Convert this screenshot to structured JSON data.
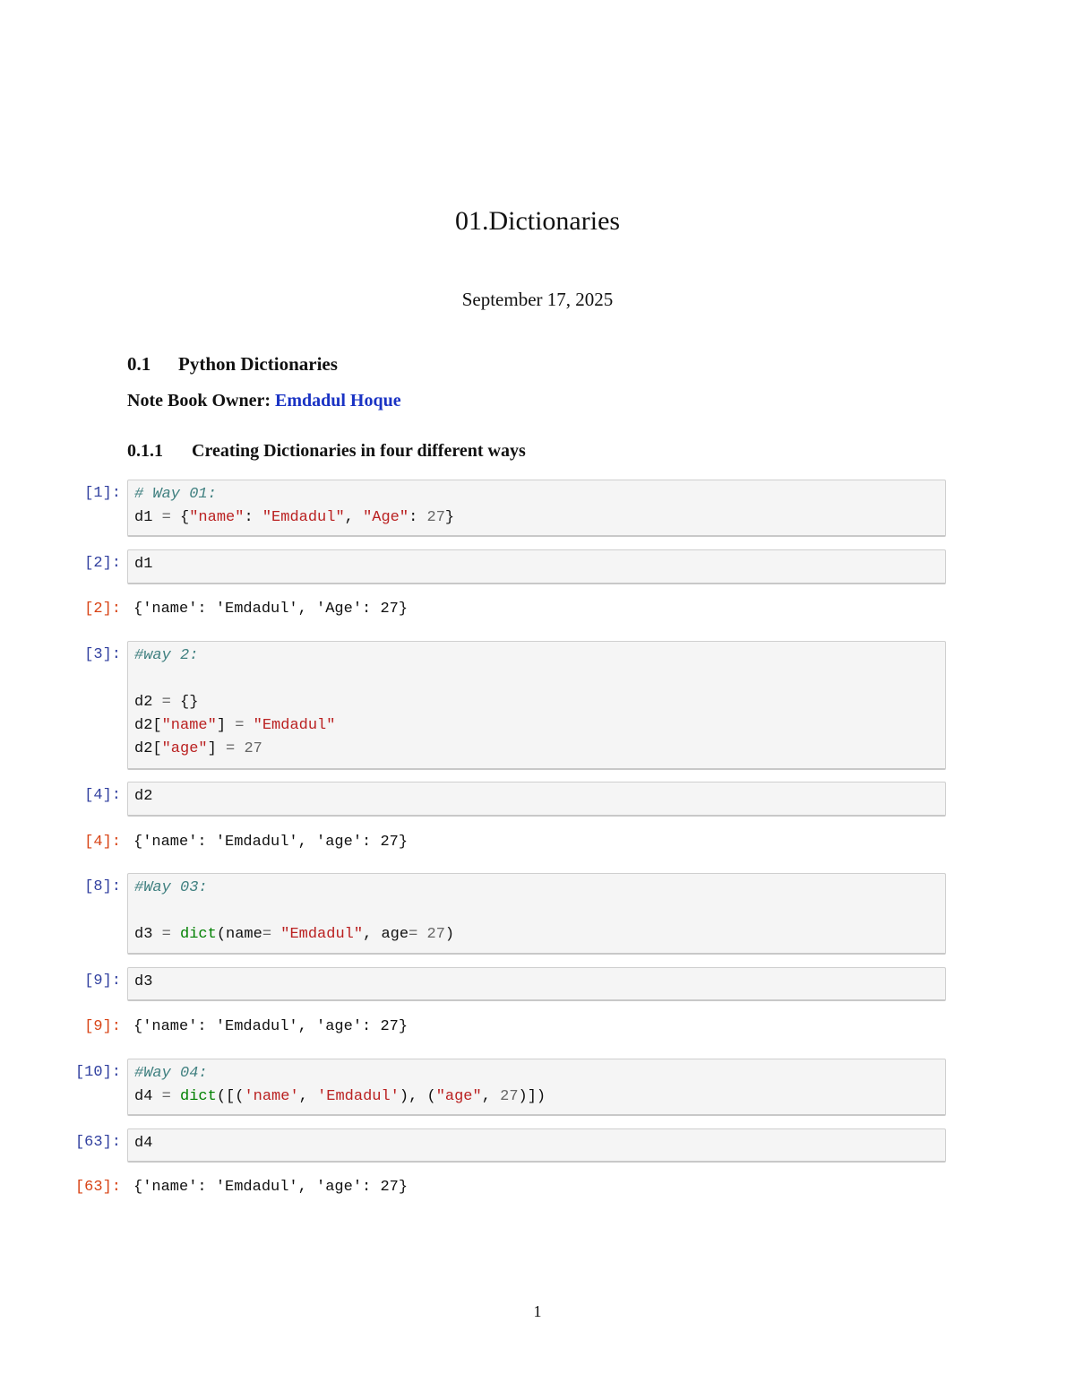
{
  "doc": {
    "title": "01.Dictionaries",
    "date": "September 17, 2025",
    "section_num": "0.1",
    "section_title": "Python Dictionaries",
    "owner_label": "Note Book Owner:",
    "owner_name": "Emdadul Hoque",
    "subsection_num": "0.1.1",
    "subsection_title": "Creating Dictionaries in four different ways",
    "page_number": "1"
  },
  "colors": {
    "in_prompt": "#303f9f",
    "out_prompt": "#d84315",
    "string": "#ba2121",
    "comment": "#408080",
    "builtin": "#008000",
    "owner_link": "#1a33c4"
  },
  "cells": [
    {
      "prompt": "[1]:",
      "lines": [
        [
          {
            "t": "# Way 01:",
            "c": "c"
          }
        ],
        [
          {
            "t": "d1 ",
            "c": "p"
          },
          {
            "t": "=",
            "c": "o"
          },
          {
            "t": " {",
            "c": "p"
          },
          {
            "t": "\"name\"",
            "c": "s"
          },
          {
            "t": ": ",
            "c": "p"
          },
          {
            "t": "\"Emdadul\"",
            "c": "s"
          },
          {
            "t": ", ",
            "c": "p"
          },
          {
            "t": "\"Age\"",
            "c": "s"
          },
          {
            "t": ": ",
            "c": "p"
          },
          {
            "t": "27",
            "c": "n"
          },
          {
            "t": "}",
            "c": "p"
          }
        ]
      ]
    },
    {
      "prompt": "[2]:",
      "lines": [
        [
          {
            "t": "d1",
            "c": "p"
          }
        ]
      ],
      "output_prompt": "[2]:",
      "output": "{'name': 'Emdadul', 'Age': 27}"
    },
    {
      "prompt": "[3]:",
      "lines": [
        [
          {
            "t": "#way 2:",
            "c": "c"
          }
        ],
        [],
        [
          {
            "t": "d2 ",
            "c": "p"
          },
          {
            "t": "=",
            "c": "o"
          },
          {
            "t": " {}",
            "c": "p"
          }
        ],
        [
          {
            "t": "d2[",
            "c": "p"
          },
          {
            "t": "\"name\"",
            "c": "s"
          },
          {
            "t": "] ",
            "c": "p"
          },
          {
            "t": "=",
            "c": "o"
          },
          {
            "t": " ",
            "c": "p"
          },
          {
            "t": "\"Emdadul\"",
            "c": "s"
          }
        ],
        [
          {
            "t": "d2[",
            "c": "p"
          },
          {
            "t": "\"age\"",
            "c": "s"
          },
          {
            "t": "] ",
            "c": "p"
          },
          {
            "t": "=",
            "c": "o"
          },
          {
            "t": " ",
            "c": "p"
          },
          {
            "t": "27",
            "c": "n"
          }
        ]
      ]
    },
    {
      "prompt": "[4]:",
      "lines": [
        [
          {
            "t": "d2",
            "c": "p"
          }
        ]
      ],
      "output_prompt": "[4]:",
      "output": "{'name': 'Emdadul', 'age': 27}"
    },
    {
      "prompt": "[8]:",
      "lines": [
        [
          {
            "t": "#Way 03:",
            "c": "c"
          }
        ],
        [],
        [
          {
            "t": "d3 ",
            "c": "p"
          },
          {
            "t": "=",
            "c": "o"
          },
          {
            "t": " ",
            "c": "p"
          },
          {
            "t": "dict",
            "c": "b"
          },
          {
            "t": "(name",
            "c": "p"
          },
          {
            "t": "=",
            "c": "o"
          },
          {
            "t": " ",
            "c": "p"
          },
          {
            "t": "\"Emdadul\"",
            "c": "s"
          },
          {
            "t": ", age",
            "c": "p"
          },
          {
            "t": "=",
            "c": "o"
          },
          {
            "t": " ",
            "c": "p"
          },
          {
            "t": "27",
            "c": "n"
          },
          {
            "t": ")",
            "c": "p"
          }
        ]
      ]
    },
    {
      "prompt": "[9]:",
      "lines": [
        [
          {
            "t": "d3",
            "c": "p"
          }
        ]
      ],
      "output_prompt": "[9]:",
      "output": "{'name': 'Emdadul', 'age': 27}"
    },
    {
      "prompt": "[10]:",
      "lines": [
        [
          {
            "t": "#Way 04:",
            "c": "c"
          }
        ],
        [
          {
            "t": "d4 ",
            "c": "p"
          },
          {
            "t": "=",
            "c": "o"
          },
          {
            "t": " ",
            "c": "p"
          },
          {
            "t": "dict",
            "c": "b"
          },
          {
            "t": "([(",
            "c": "p"
          },
          {
            "t": "'name'",
            "c": "s"
          },
          {
            "t": ", ",
            "c": "p"
          },
          {
            "t": "'Emdadul'",
            "c": "s"
          },
          {
            "t": "), (",
            "c": "p"
          },
          {
            "t": "\"age\"",
            "c": "s"
          },
          {
            "t": ", ",
            "c": "p"
          },
          {
            "t": "27",
            "c": "n"
          },
          {
            "t": ")])",
            "c": "p"
          }
        ]
      ]
    },
    {
      "prompt": "[63]:",
      "lines": [
        [
          {
            "t": "d4",
            "c": "p"
          }
        ]
      ],
      "output_prompt": "[63]:",
      "output": "{'name': 'Emdadul', 'age': 27}"
    }
  ]
}
